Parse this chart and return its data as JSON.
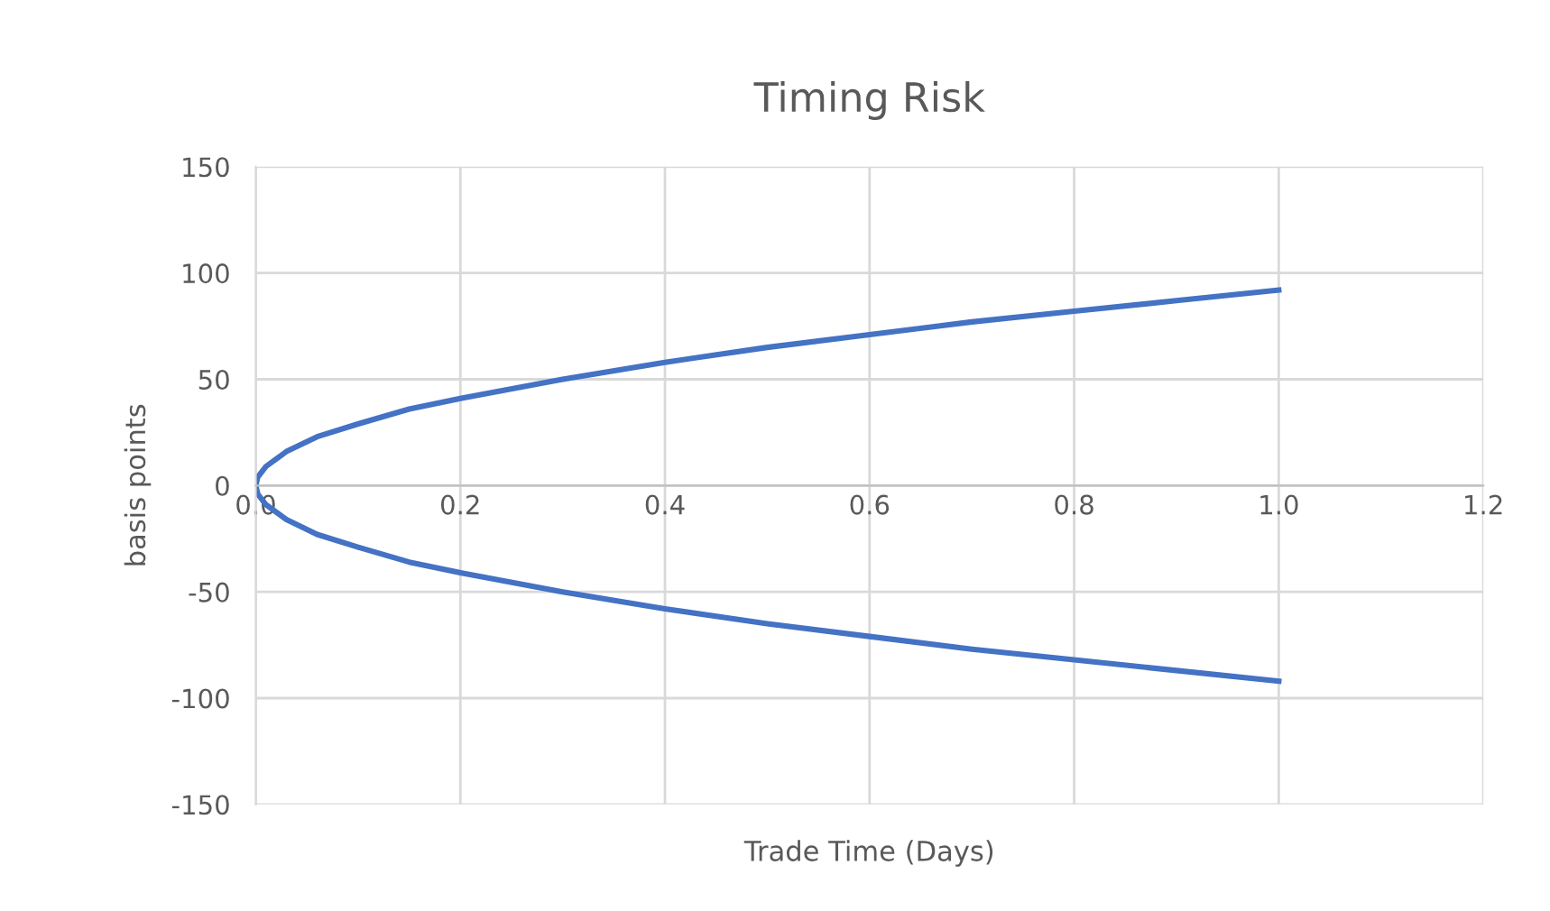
{
  "chart_data": {
    "type": "line",
    "title": "Timing Risk",
    "xlabel": "Trade Time (Days)",
    "ylabel": "basis points",
    "x": [
      0,
      0.002,
      0.01,
      0.03,
      0.06,
      0.1,
      0.15,
      0.2,
      0.3,
      0.4,
      0.5,
      0.6,
      0.7,
      0.8,
      0.9,
      1.0
    ],
    "series": [
      {
        "color": "#4472c4",
        "values": [
          0,
          4,
          9,
          16,
          23,
          29,
          36,
          41,
          50,
          58,
          65,
          71,
          77,
          82,
          87,
          92
        ]
      },
      {
        "color": "#4472c4",
        "values": [
          0,
          -4,
          -9,
          -16,
          -23,
          -29,
          -36,
          -41,
          -50,
          -58,
          -65,
          -71,
          -77,
          -82,
          -87,
          -92
        ]
      }
    ],
    "xlim": [
      0,
      1.2
    ],
    "xticks": [
      {
        "value": 0,
        "label": "0.0"
      },
      0.2,
      0.4,
      0.6,
      0.8,
      {
        "value": 1,
        "label": "1.0"
      },
      1.2
    ],
    "ylim": [
      -150,
      150
    ],
    "yticks": [
      -150,
      -100,
      -50,
      0,
      50,
      100,
      150
    ],
    "grid": true,
    "marker": "none",
    "line_style": "solid"
  }
}
